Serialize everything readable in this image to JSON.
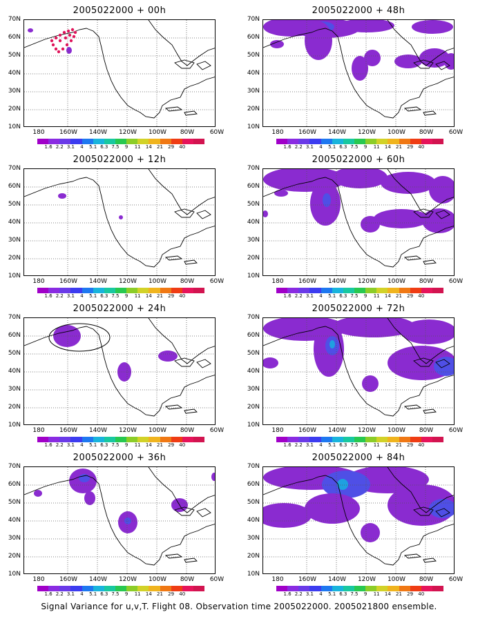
{
  "panels": [
    {
      "title": "2005022000 + 00h",
      "id": "p00",
      "blobs": [
        {
          "cx": 9,
          "cy": 15,
          "rx": 4,
          "ry": 3,
          "c": "#8a2bd0"
        },
        {
          "cx": 65,
          "cy": 44,
          "rx": 4,
          "ry": 5,
          "c": "#8a2bd0"
        }
      ],
      "dots": true
    },
    {
      "title": "2005022000 + 48h",
      "id": "p48",
      "blobs": [
        {
          "cx": 40,
          "cy": 10,
          "rx": 40,
          "ry": 14,
          "c": "#8a2bd0"
        },
        {
          "cx": 90,
          "cy": 12,
          "rx": 50,
          "ry": 14,
          "c": "#8a2bd0"
        },
        {
          "cx": 85,
          "cy": 10,
          "rx": 18,
          "ry": 8,
          "c": "#4f4fe6"
        },
        {
          "cx": 150,
          "cy": 8,
          "rx": 40,
          "ry": 10,
          "c": "#8a2bd0"
        },
        {
          "cx": 245,
          "cy": 10,
          "rx": 30,
          "ry": 10,
          "c": "#8a2bd0"
        },
        {
          "cx": 80,
          "cy": 30,
          "rx": 20,
          "ry": 28,
          "c": "#8a2bd0"
        },
        {
          "cx": 20,
          "cy": 35,
          "rx": 10,
          "ry": 6,
          "c": "#8a2bd0"
        },
        {
          "cx": 140,
          "cy": 70,
          "rx": 12,
          "ry": 18,
          "c": "#8a2bd0"
        },
        {
          "cx": 158,
          "cy": 55,
          "rx": 12,
          "ry": 12,
          "c": "#8a2bd0"
        },
        {
          "cx": 210,
          "cy": 60,
          "rx": 20,
          "ry": 10,
          "c": "#8a2bd0"
        },
        {
          "cx": 248,
          "cy": 55,
          "rx": 22,
          "ry": 14,
          "c": "#8a2bd0"
        },
        {
          "cx": 272,
          "cy": 60,
          "rx": 10,
          "ry": 12,
          "c": "#8a2bd0"
        }
      ]
    },
    {
      "title": "2005022000 + 12h",
      "id": "p12",
      "blobs": [
        {
          "cx": 55,
          "cy": 39,
          "rx": 6,
          "ry": 4,
          "c": "#8a2bd0"
        },
        {
          "cx": 140,
          "cy": 70,
          "rx": 3,
          "ry": 3,
          "c": "#8a2bd0"
        }
      ]
    },
    {
      "title": "2005022000 + 60h",
      "id": "p60",
      "blobs": [
        {
          "cx": 60,
          "cy": 15,
          "rx": 60,
          "ry": 18,
          "c": "#8a2bd0"
        },
        {
          "cx": 140,
          "cy": 12,
          "rx": 40,
          "ry": 16,
          "c": "#8a2bd0"
        },
        {
          "cx": 210,
          "cy": 20,
          "rx": 40,
          "ry": 16,
          "c": "#8a2bd0"
        },
        {
          "cx": 260,
          "cy": 30,
          "rx": 20,
          "ry": 20,
          "c": "#8a2bd0"
        },
        {
          "cx": 90,
          "cy": 50,
          "rx": 22,
          "ry": 32,
          "c": "#8a2bd0"
        },
        {
          "cx": 92,
          "cy": 45,
          "rx": 6,
          "ry": 10,
          "c": "#4f4fe6"
        },
        {
          "cx": 26,
          "cy": 35,
          "rx": 10,
          "ry": 5,
          "c": "#8a2bd0"
        },
        {
          "cx": 155,
          "cy": 80,
          "rx": 14,
          "ry": 12,
          "c": "#8a2bd0"
        },
        {
          "cx": 200,
          "cy": 72,
          "rx": 40,
          "ry": 14,
          "c": "#8a2bd0"
        },
        {
          "cx": 255,
          "cy": 75,
          "rx": 25,
          "ry": 18,
          "c": "#8a2bd0"
        },
        {
          "cx": 3,
          "cy": 65,
          "rx": 4,
          "ry": 5,
          "c": "#8a2bd0"
        }
      ]
    },
    {
      "title": "2005022000 + 24h",
      "id": "p24",
      "blobs": [
        {
          "cx": 62,
          "cy": 26,
          "rx": 20,
          "ry": 16,
          "c": "#8a2bd0"
        },
        {
          "cx": 145,
          "cy": 78,
          "rx": 10,
          "ry": 14,
          "c": "#8a2bd0"
        },
        {
          "cx": 208,
          "cy": 55,
          "rx": 14,
          "ry": 8,
          "c": "#8a2bd0"
        }
      ],
      "ellipse": {
        "cx": 80,
        "cy": 28,
        "rx": 44,
        "ry": 20
      }
    },
    {
      "title": "2005022000 + 72h",
      "id": "p72",
      "blobs": [
        {
          "cx": 60,
          "cy": 15,
          "rx": 60,
          "ry": 18,
          "c": "#8a2bd0"
        },
        {
          "cx": 160,
          "cy": 12,
          "rx": 60,
          "ry": 16,
          "c": "#8a2bd0"
        },
        {
          "cx": 240,
          "cy": 20,
          "rx": 40,
          "ry": 18,
          "c": "#8a2bd0"
        },
        {
          "cx": 95,
          "cy": 45,
          "rx": 22,
          "ry": 40,
          "c": "#8a2bd0"
        },
        {
          "cx": 100,
          "cy": 40,
          "rx": 10,
          "ry": 14,
          "c": "#4f4fe6"
        },
        {
          "cx": 100,
          "cy": 38,
          "rx": 4,
          "ry": 6,
          "c": "#1fa0e0"
        },
        {
          "cx": 10,
          "cy": 65,
          "rx": 12,
          "ry": 8,
          "c": "#8a2bd0"
        },
        {
          "cx": 155,
          "cy": 95,
          "rx": 12,
          "ry": 12,
          "c": "#8a2bd0"
        },
        {
          "cx": 230,
          "cy": 65,
          "rx": 50,
          "ry": 25,
          "c": "#8a2bd0"
        },
        {
          "cx": 265,
          "cy": 70,
          "rx": 18,
          "ry": 14,
          "c": "#4f4fe6"
        }
      ]
    },
    {
      "title": "2005022000 + 36h",
      "id": "p36",
      "blobs": [
        {
          "cx": 85,
          "cy": 20,
          "rx": 20,
          "ry": 18,
          "c": "#8a2bd0"
        },
        {
          "cx": 87,
          "cy": 16,
          "rx": 8,
          "ry": 6,
          "c": "#4f4fe6"
        },
        {
          "cx": 95,
          "cy": 45,
          "rx": 8,
          "ry": 10,
          "c": "#8a2bd0"
        },
        {
          "cx": 20,
          "cy": 38,
          "rx": 6,
          "ry": 5,
          "c": "#8a2bd0"
        },
        {
          "cx": 150,
          "cy": 80,
          "rx": 14,
          "ry": 16,
          "c": "#8a2bd0"
        },
        {
          "cx": 150,
          "cy": 78,
          "rx": 5,
          "ry": 5,
          "c": "#4f4fe6"
        },
        {
          "cx": 225,
          "cy": 55,
          "rx": 12,
          "ry": 10,
          "c": "#8a2bd0"
        },
        {
          "cx": 275,
          "cy": 14,
          "rx": 4,
          "ry": 6,
          "c": "#8a2bd0"
        }
      ]
    },
    {
      "title": "2005022000 + 84h",
      "id": "p84",
      "blobs": [
        {
          "cx": 70,
          "cy": 15,
          "rx": 70,
          "ry": 18,
          "c": "#8a2bd0"
        },
        {
          "cx": 180,
          "cy": 18,
          "rx": 60,
          "ry": 20,
          "c": "#8a2bd0"
        },
        {
          "cx": 120,
          "cy": 25,
          "rx": 35,
          "ry": 20,
          "c": "#4f4fe6"
        },
        {
          "cx": 115,
          "cy": 25,
          "rx": 8,
          "ry": 8,
          "c": "#1fa0e0"
        },
        {
          "cx": 30,
          "cy": 70,
          "rx": 40,
          "ry": 18,
          "c": "#8a2bd0"
        },
        {
          "cx": 100,
          "cy": 60,
          "rx": 40,
          "ry": 22,
          "c": "#8a2bd0"
        },
        {
          "cx": 155,
          "cy": 95,
          "rx": 14,
          "ry": 14,
          "c": "#8a2bd0"
        },
        {
          "cx": 230,
          "cy": 55,
          "rx": 50,
          "ry": 30,
          "c": "#8a2bd0"
        },
        {
          "cx": 260,
          "cy": 60,
          "rx": 20,
          "ry": 14,
          "c": "#4f4fe6"
        }
      ]
    }
  ],
  "ylabels": [
    "70N",
    "60N",
    "50N",
    "40N",
    "30N",
    "20N",
    "10N"
  ],
  "xlabels": [
    "180",
    "160W",
    "140W",
    "120W",
    "100W",
    "80W",
    "60W"
  ],
  "colorbar": {
    "colors": [
      "#a000c8",
      "#8a2be2",
      "#6a3ae8",
      "#3c3cf0",
      "#1e78f0",
      "#19b4dc",
      "#19c8a0",
      "#28c850",
      "#8ccd28",
      "#d2d228",
      "#f0b41e",
      "#f07814",
      "#ef3c14",
      "#e6145a",
      "#d21450"
    ],
    "labels": [
      "1.6",
      "2.2",
      "3.1",
      "4",
      "5.1",
      "6.3",
      "7.5",
      "9",
      "11",
      "14",
      "21",
      "29",
      "40"
    ]
  },
  "caption": "Signal Variance for u,v,T. Flight 08. Observation time 2005022000. 2005021800 ensemble."
}
